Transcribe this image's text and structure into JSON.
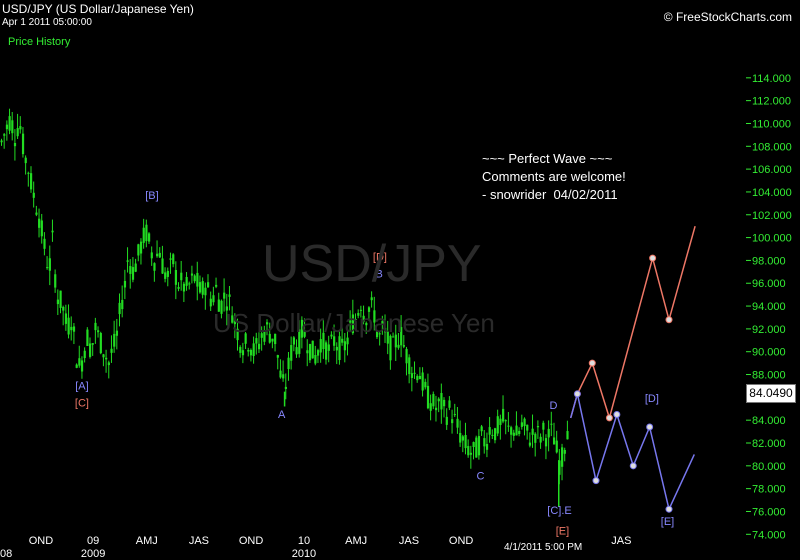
{
  "header": {
    "title": "USD/JPY (US Dollar/Japanese Yen)",
    "date": "Apr 1 2011 05:00:00",
    "price_history_label": "Price History",
    "source": "© FreeStockCharts.com"
  },
  "watermark": {
    "symbol": "USD/JPY",
    "name": "US Dollar/Japanese Yen"
  },
  "note": {
    "lines": [
      "~~~ Perfect Wave ~~~",
      "Comments are welcome!",
      "- snowrider  04/02/2011"
    ]
  },
  "last_price": "84.0490",
  "colors": {
    "background": "#000000",
    "candles": "#22dd22",
    "axis_labels": "#33ee33",
    "blue_path": "#7777ee",
    "red_path": "#ee7766",
    "wave_blue": "#8888ff",
    "wave_red": "#ee7766"
  },
  "chart_data": {
    "type": "candlestick",
    "ylim": [
      73.5,
      116
    ],
    "y_ticks": [
      114,
      112,
      110,
      108,
      106,
      104,
      102,
      100,
      98,
      96,
      94,
      92,
      90,
      88,
      86,
      84,
      82,
      80,
      78,
      76,
      74
    ],
    "y_tick_labels": [
      "114.000",
      "112.000",
      "110.000",
      "108.000",
      "106.000",
      "104.000",
      "102.000",
      "100.000",
      "98.000",
      "96.000",
      "94.000",
      "92.000",
      "90.000",
      "88.000",
      "86.000",
      "84.000",
      "82.000",
      "80.000",
      "78.000",
      "76.000",
      "74.000"
    ],
    "x_range": [
      0,
      1000
    ],
    "x_ticks": [
      {
        "label": "OND",
        "x": 55
      },
      {
        "label": "09",
        "x": 125
      },
      {
        "label": "AMJ",
        "x": 197
      },
      {
        "label": "JAS",
        "x": 267
      },
      {
        "label": "OND",
        "x": 337
      },
      {
        "label": "10",
        "x": 408
      },
      {
        "label": "AMJ",
        "x": 478
      },
      {
        "label": "JAS",
        "x": 549
      },
      {
        "label": "OND",
        "x": 619
      },
      {
        "label": "JAS",
        "x": 834
      }
    ],
    "x_year_labels": [
      {
        "label": "08",
        "x": 5
      },
      {
        "label": "2009",
        "x": 125
      },
      {
        "label": "2010",
        "x": 408
      }
    ],
    "x_cursor_label": {
      "label": "4/1/2011 5:00 PM",
      "x": 729
    },
    "price_path": [
      [
        0,
        108
      ],
      [
        8,
        109.5
      ],
      [
        14,
        110.5
      ],
      [
        20,
        109
      ],
      [
        26,
        110.2
      ],
      [
        32,
        107.5
      ],
      [
        38,
        106
      ],
      [
        44,
        104
      ],
      [
        52,
        102
      ],
      [
        60,
        99
      ],
      [
        66,
        97
      ],
      [
        70,
        100
      ],
      [
        76,
        95
      ],
      [
        84,
        94
      ],
      [
        90,
        92
      ],
      [
        96,
        93
      ],
      [
        100,
        91
      ],
      [
        104,
        89
      ],
      [
        108,
        88.5
      ],
      [
        112,
        90
      ],
      [
        118,
        91.5
      ],
      [
        122,
        90
      ],
      [
        128,
        92
      ],
      [
        134,
        91
      ],
      [
        140,
        90
      ],
      [
        146,
        89
      ],
      [
        150,
        90
      ],
      [
        156,
        91
      ],
      [
        162,
        94
      ],
      [
        168,
        96
      ],
      [
        172,
        98.5
      ],
      [
        178,
        97
      ],
      [
        184,
        98
      ],
      [
        190,
        99.5
      ],
      [
        196,
        100.5
      ],
      [
        202,
        99
      ],
      [
        208,
        98
      ],
      [
        214,
        99
      ],
      [
        220,
        97
      ],
      [
        226,
        96.5
      ],
      [
        232,
        98
      ],
      [
        238,
        96
      ],
      [
        244,
        96
      ],
      [
        250,
        95.5
      ],
      [
        256,
        96
      ],
      [
        262,
        96.5
      ],
      [
        270,
        95
      ],
      [
        276,
        96
      ],
      [
        284,
        94.5
      ],
      [
        290,
        95.5
      ],
      [
        296,
        94
      ],
      [
        302,
        95
      ],
      [
        310,
        94
      ],
      [
        316,
        92.5
      ],
      [
        322,
        91
      ],
      [
        328,
        90.5
      ],
      [
        334,
        91
      ],
      [
        340,
        90
      ],
      [
        346,
        90.5
      ],
      [
        352,
        91.5
      ],
      [
        358,
        92
      ],
      [
        364,
        91.5
      ],
      [
        370,
        91
      ],
      [
        376,
        88
      ],
      [
        382,
        86.5
      ],
      [
        388,
        89
      ],
      [
        394,
        91
      ],
      [
        400,
        90.5
      ],
      [
        406,
        92
      ],
      [
        412,
        91
      ],
      [
        418,
        90
      ],
      [
        424,
        89.5
      ],
      [
        430,
        91
      ],
      [
        436,
        90.5
      ],
      [
        442,
        90
      ],
      [
        448,
        91
      ],
      [
        454,
        90.5
      ],
      [
        460,
        90
      ],
      [
        466,
        91
      ],
      [
        472,
        92.5
      ],
      [
        478,
        93
      ],
      [
        484,
        94.5
      ],
      [
        490,
        93
      ],
      [
        496,
        94
      ],
      [
        502,
        93.5
      ],
      [
        508,
        91
      ],
      [
        514,
        92
      ],
      [
        520,
        91
      ],
      [
        526,
        90
      ],
      [
        532,
        91
      ],
      [
        538,
        91.5
      ],
      [
        544,
        90
      ],
      [
        550,
        89
      ],
      [
        556,
        88
      ],
      [
        562,
        88.5
      ],
      [
        568,
        87
      ],
      [
        574,
        86
      ],
      [
        580,
        85.5
      ],
      [
        586,
        85
      ],
      [
        592,
        85.5
      ],
      [
        598,
        84.5
      ],
      [
        604,
        85
      ],
      [
        610,
        84
      ],
      [
        616,
        83
      ],
      [
        622,
        82
      ],
      [
        628,
        81.5
      ],
      [
        634,
        81
      ],
      [
        640,
        81.5
      ],
      [
        646,
        82.5
      ],
      [
        652,
        82
      ],
      [
        658,
        83.5
      ],
      [
        664,
        83
      ],
      [
        670,
        83.5
      ],
      [
        676,
        84
      ],
      [
        682,
        83
      ],
      [
        688,
        83.5
      ],
      [
        694,
        82.5
      ],
      [
        700,
        83.5
      ],
      [
        706,
        83
      ],
      [
        712,
        82.5
      ],
      [
        718,
        83
      ],
      [
        724,
        82.5
      ],
      [
        730,
        83
      ],
      [
        736,
        82.5
      ],
      [
        742,
        83
      ],
      [
        748,
        81
      ],
      [
        752,
        80
      ],
      [
        756,
        81
      ],
      [
        760,
        83
      ],
      [
        764,
        84
      ]
    ],
    "candle_extremes": [
      {
        "x": 750,
        "low": 76.4
      },
      {
        "x": 382,
        "low": 85.2
      }
    ],
    "projections": {
      "red": [
        [
          766,
          84.2
        ],
        [
          775,
          86.3
        ],
        [
          795,
          89
        ],
        [
          818,
          84.2
        ],
        [
          876,
          98.2
        ],
        [
          898,
          92.8
        ],
        [
          933,
          101
        ]
      ],
      "blue": [
        [
          766,
          84.2
        ],
        [
          775,
          86.3
        ],
        [
          800,
          78.7
        ],
        [
          828,
          84.5
        ],
        [
          850,
          80
        ],
        [
          872,
          83.4
        ],
        [
          898,
          76.2
        ],
        [
          932,
          81
        ]
      ]
    },
    "wave_labels": [
      {
        "text": "[A]",
        "x": 110,
        "y": 86.7,
        "color": "blue"
      },
      {
        "text": "[C]",
        "x": 110,
        "y": 85.2,
        "color": "red"
      },
      {
        "text": "[B]",
        "x": 204,
        "y": 103.4,
        "color": "blue"
      },
      {
        "text": "A",
        "x": 378,
        "y": 84.2,
        "color": "blue"
      },
      {
        "text": "[D]",
        "x": 510,
        "y": 98,
        "color": "red"
      },
      {
        "text": "B",
        "x": 509,
        "y": 96.5,
        "color": "blue"
      },
      {
        "text": "C",
        "x": 645,
        "y": 78.8,
        "color": "blue"
      },
      {
        "text": "D",
        "x": 743,
        "y": 85,
        "color": "blue"
      },
      {
        "text": "[C].E",
        "x": 751,
        "y": 75.8,
        "color": "blue"
      },
      {
        "text": "[E]",
        "x": 755,
        "y": 74,
        "color": "red"
      },
      {
        "text": "[D]",
        "x": 875,
        "y": 85.6,
        "color": "blue"
      },
      {
        "text": "[E]",
        "x": 896,
        "y": 74.8,
        "color": "blue"
      }
    ]
  }
}
